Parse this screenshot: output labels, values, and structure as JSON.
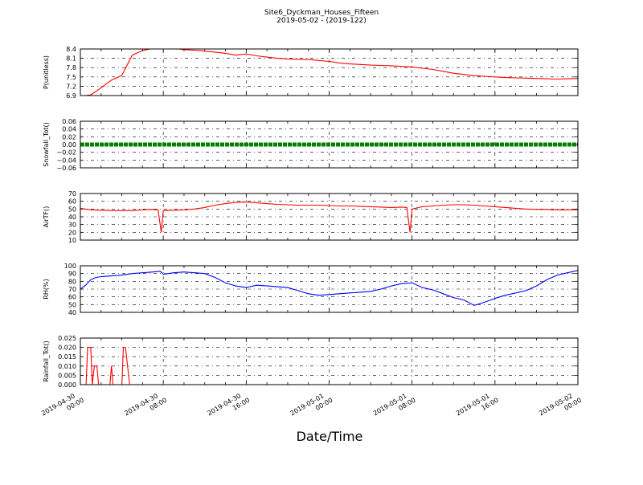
{
  "figure": {
    "title_line1": "Site6_Dyckman_Houses_Fifteen",
    "title_line2": "2019-05-02 - (2019-122)",
    "xlabel": "Date/Time"
  },
  "chart_data": [
    {
      "type": "line",
      "ylabel": "P(unitless)",
      "ylim": [
        6.9,
        8.4
      ],
      "yticks": [
        "8.4",
        "8.1",
        "7.8",
        "7.5",
        "7.2",
        "6.9"
      ],
      "color": "#ff0000",
      "grid": true,
      "x_hours": [
        0,
        1,
        2,
        3,
        4,
        5,
        6,
        7,
        8,
        9,
        10,
        11,
        12,
        13,
        14,
        15,
        16,
        17,
        18,
        19,
        20,
        21,
        22,
        23,
        24,
        25,
        26,
        27,
        28,
        29,
        30,
        31,
        32,
        33,
        34,
        35,
        36,
        37,
        38,
        39,
        40,
        41,
        42,
        43,
        44,
        45,
        46,
        47,
        48
      ],
      "values": [
        6.88,
        6.92,
        7.15,
        7.4,
        7.55,
        8.2,
        8.35,
        8.42,
        8.44,
        8.42,
        8.38,
        8.36,
        8.33,
        8.3,
        8.26,
        8.2,
        8.24,
        8.18,
        8.14,
        8.1,
        8.08,
        8.07,
        8.06,
        8.03,
        8.0,
        7.95,
        7.92,
        7.9,
        7.88,
        7.87,
        7.86,
        7.84,
        7.82,
        7.78,
        7.74,
        7.68,
        7.62,
        7.58,
        7.54,
        7.52,
        7.5,
        7.48,
        7.47,
        7.46,
        7.45,
        7.44,
        7.43,
        7.44,
        7.45
      ]
    },
    {
      "type": "line",
      "ylabel": "Snowfall_Tot()",
      "ylim": [
        -0.06,
        0.06
      ],
      "yticks": [
        "0.06",
        "0.04",
        "0.02",
        "0.00",
        "−0.02",
        "−0.04",
        "−0.06"
      ],
      "color": "#008000",
      "grid": true,
      "x_hours": [
        0,
        48
      ],
      "values": [
        0,
        0
      ]
    },
    {
      "type": "line",
      "ylabel": "AirTF()",
      "ylim": [
        10,
        70
      ],
      "yticks": [
        "70",
        "60",
        "50",
        "40",
        "30",
        "20",
        "10"
      ],
      "color": "#ff0000",
      "grid": true,
      "x_hours": [
        0,
        1,
        2,
        3,
        4,
        5,
        6,
        7,
        7.5,
        7.8,
        8,
        9,
        10,
        11,
        12,
        13,
        14,
        15,
        16,
        17,
        18,
        19,
        20,
        21,
        22,
        23,
        24,
        25,
        26,
        27,
        28,
        29,
        30,
        31,
        31.5,
        31.8,
        32,
        33,
        34,
        35,
        36,
        37,
        38,
        39,
        40,
        41,
        42,
        43,
        44,
        45,
        46,
        47,
        48
      ],
      "values": [
        51,
        49,
        48.5,
        48,
        48,
        48,
        49,
        49.5,
        49,
        20,
        48,
        48.5,
        49,
        50,
        52,
        55,
        57,
        58.5,
        59,
        58,
        57,
        56,
        55.5,
        55,
        55,
        55,
        54.5,
        54,
        54,
        53.5,
        53,
        52.5,
        52,
        52.5,
        52,
        20,
        50,
        53,
        54,
        55,
        55.5,
        55.5,
        55,
        54,
        53,
        52,
        51,
        50,
        49.5,
        49.5,
        49,
        49,
        49
      ]
    },
    {
      "type": "line",
      "ylabel": "RH(%)",
      "ylim": [
        40,
        100
      ],
      "yticks": [
        "100",
        "90",
        "80",
        "70",
        "60",
        "50",
        "40"
      ],
      "color": "#0000ff",
      "grid": true,
      "x_hours": [
        0,
        0.5,
        1,
        1.5,
        2,
        3,
        4,
        5,
        6,
        7,
        7.7,
        8,
        9,
        10,
        11,
        12,
        13,
        14,
        15,
        16,
        17,
        18,
        19,
        20,
        21,
        22,
        23,
        24,
        25,
        26,
        27,
        28,
        29,
        30,
        31,
        32,
        33,
        34,
        35,
        36,
        37,
        38,
        39,
        40,
        41,
        42,
        43,
        44,
        45,
        46,
        47,
        48
      ],
      "values": [
        70,
        75,
        82,
        85,
        86,
        87,
        88,
        90,
        91,
        92,
        93,
        89,
        91,
        92,
        91,
        90,
        85,
        78,
        74,
        72,
        75,
        74,
        73,
        72,
        68,
        64,
        62,
        63,
        64,
        65,
        66,
        67,
        70,
        74,
        77,
        78,
        72,
        69,
        64,
        59,
        56,
        49,
        53,
        58,
        62,
        65,
        68,
        74,
        82,
        88,
        91,
        94
      ]
    },
    {
      "type": "line",
      "ylabel": "Rainfall_Tot()",
      "ylim": [
        0,
        0.025
      ],
      "yticks": [
        "0.025",
        "0.020",
        "0.015",
        "0.010",
        "0.005",
        "0.000"
      ],
      "color": "#ff0000",
      "grid": true,
      "x_hours": [
        0,
        0.55,
        0.7,
        0.85,
        1.0,
        1.15,
        1.35,
        1.5,
        1.6,
        1.75,
        2.0,
        2.85,
        3.0,
        3.15,
        3.3,
        4.0,
        4.15,
        4.35,
        4.55,
        4.75,
        5.0,
        48
      ],
      "values": [
        0,
        0,
        0.02,
        0.02,
        0.02,
        0,
        0.01,
        0.01,
        0.01,
        0,
        0,
        0,
        0.01,
        0,
        0,
        0,
        0.02,
        0.02,
        0.01,
        0,
        0,
        0
      ]
    }
  ],
  "x_axis": {
    "tick_labels": [
      [
        "2019-04-30",
        "00:00"
      ],
      [
        "2019-04-30",
        "08:00"
      ],
      [
        "2019-04-30",
        "16:00"
      ],
      [
        "2019-05-01",
        "00:00"
      ],
      [
        "2019-05-01",
        "08:00"
      ],
      [
        "2019-05-01",
        "16:00"
      ],
      [
        "2019-05-02",
        "00:00"
      ]
    ],
    "tick_hours": [
      0,
      8,
      16,
      24,
      32,
      40,
      48
    ]
  }
}
